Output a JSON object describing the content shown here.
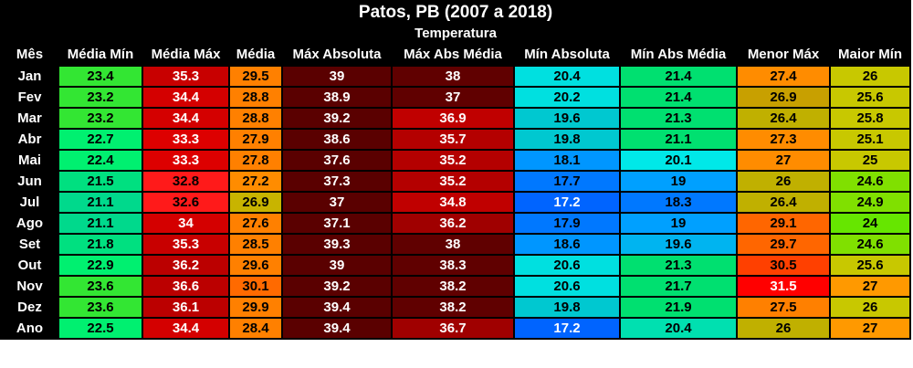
{
  "title": "Patos, PB (2007 a 2018)",
  "group_header": "Temperatura",
  "columns": [
    "Mês",
    "Média Mín",
    "Média Máx",
    "Média",
    "Máx Absoluta",
    "Máx Abs Média",
    "Mín Absoluta",
    "Mín Abs Média",
    "Menor Máx",
    "Maior Mín"
  ],
  "rows": [
    [
      "Jan",
      "23.4",
      "35.3",
      "29.5",
      "39",
      "38",
      "20.4",
      "21.4",
      "27.4",
      "26"
    ],
    [
      "Fev",
      "23.2",
      "34.4",
      "28.8",
      "38.9",
      "37",
      "20.2",
      "21.4",
      "26.9",
      "25.6"
    ],
    [
      "Mar",
      "23.2",
      "34.4",
      "28.8",
      "39.2",
      "36.9",
      "19.6",
      "21.3",
      "26.4",
      "25.8"
    ],
    [
      "Abr",
      "22.7",
      "33.3",
      "27.9",
      "38.6",
      "35.7",
      "19.8",
      "21.1",
      "27.3",
      "25.1"
    ],
    [
      "Mai",
      "22.4",
      "33.3",
      "27.8",
      "37.6",
      "35.2",
      "18.1",
      "20.1",
      "27",
      "25"
    ],
    [
      "Jun",
      "21.5",
      "32.8",
      "27.2",
      "37.3",
      "35.2",
      "17.7",
      "19",
      "26",
      "24.6"
    ],
    [
      "Jul",
      "21.1",
      "32.6",
      "26.9",
      "37",
      "34.8",
      "17.2",
      "18.3",
      "26.4",
      "24.9"
    ],
    [
      "Ago",
      "21.1",
      "34",
      "27.6",
      "37.1",
      "36.2",
      "17.9",
      "19",
      "29.1",
      "24"
    ],
    [
      "Set",
      "21.8",
      "35.3",
      "28.5",
      "39.3",
      "38",
      "18.6",
      "19.6",
      "29.7",
      "24.6"
    ],
    [
      "Out",
      "22.9",
      "36.2",
      "29.6",
      "39",
      "38.3",
      "20.6",
      "21.3",
      "30.5",
      "25.6"
    ],
    [
      "Nov",
      "23.6",
      "36.6",
      "30.1",
      "39.2",
      "38.2",
      "20.6",
      "21.7",
      "31.5",
      "27"
    ],
    [
      "Dez",
      "23.6",
      "36.1",
      "29.9",
      "39.4",
      "38.2",
      "19.8",
      "21.9",
      "27.5",
      "26"
    ],
    [
      "Ano",
      "22.5",
      "34.4",
      "28.4",
      "39.4",
      "36.7",
      "17.2",
      "20.4",
      "26",
      "27"
    ]
  ],
  "colors": [
    [
      "#33e633",
      "#c80000",
      "#ff8000",
      "#5a0000",
      "#600000",
      "#00e0e0",
      "#00e070",
      "#ff8c00",
      "#c8c800"
    ],
    [
      "#33e633",
      "#d40000",
      "#ff8000",
      "#5a0000",
      "#600000",
      "#00e0e0",
      "#00e070",
      "#c8a000",
      "#c8c800"
    ],
    [
      "#33e633",
      "#d40000",
      "#ff8000",
      "#5a0000",
      "#c00000",
      "#00c8d0",
      "#00e070",
      "#c0b000",
      "#c8c800"
    ],
    [
      "#00f070",
      "#dd0000",
      "#ff8000",
      "#5a0000",
      "#b40000",
      "#00c8d0",
      "#00e070",
      "#ff8c00",
      "#c8c800"
    ],
    [
      "#00f070",
      "#dd0000",
      "#ff8000",
      "#5a0000",
      "#b40000",
      "#0096ff",
      "#00e8e8",
      "#ff8c00",
      "#c8c800"
    ],
    [
      "#00e080",
      "#ff1a1a",
      "#ff8c00",
      "#5a0000",
      "#b40000",
      "#0078ff",
      "#00a0ff",
      "#c0b000",
      "#80e000"
    ],
    [
      "#00d98c",
      "#ff1a1a",
      "#c8b400",
      "#5a0000",
      "#c00000",
      "#0064ff",
      "#0078ff",
      "#c0b000",
      "#80e000"
    ],
    [
      "#00d98c",
      "#d40000",
      "#ff8000",
      "#5a0000",
      "#a00000",
      "#0078ff",
      "#00a0ff",
      "#ff6600",
      "#66e600"
    ],
    [
      "#00e080",
      "#c80000",
      "#ff8000",
      "#5a0000",
      "#600000",
      "#0096ff",
      "#00b4f0",
      "#ff6600",
      "#80e000"
    ],
    [
      "#00f070",
      "#bb0000",
      "#ff8000",
      "#5a0000",
      "#600000",
      "#00e0e0",
      "#00e070",
      "#ff4000",
      "#c8c800"
    ],
    [
      "#33e633",
      "#bb0000",
      "#ff6a00",
      "#5a0000",
      "#600000",
      "#00e0e0",
      "#00e070",
      "#ff0000",
      "#ff9900"
    ],
    [
      "#33e633",
      "#bb0000",
      "#ff8000",
      "#5a0000",
      "#600000",
      "#00c8d0",
      "#00e070",
      "#ff8000",
      "#c8c800"
    ],
    [
      "#00f070",
      "#d40000",
      "#ff8000",
      "#5a0000",
      "#a00000",
      "#0064ff",
      "#00e0b0",
      "#c0b000",
      "#ff9900"
    ]
  ]
}
